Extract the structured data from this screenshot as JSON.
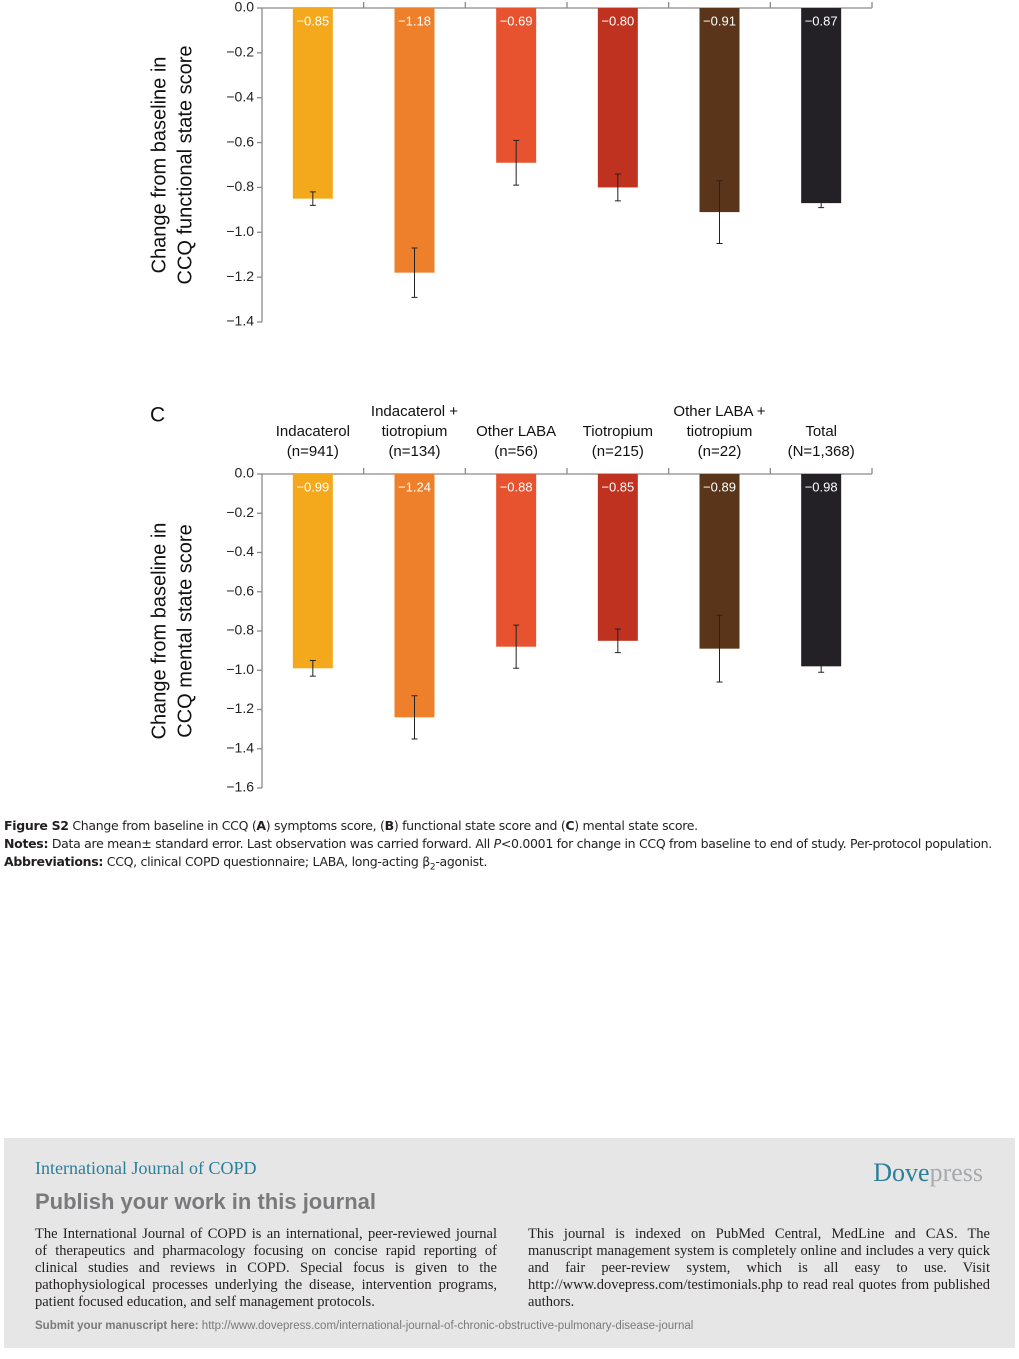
{
  "chart_data": [
    {
      "type": "bar",
      "ylabel": [
        "Change from baseline in",
        "CCQ functional state score"
      ],
      "values": [
        -0.85,
        -1.18,
        -0.69,
        -0.8,
        -0.91,
        -0.87
      ],
      "value_labels": [
        "−0.85",
        "−1.18",
        "−0.69",
        "−0.80",
        "−0.91",
        "−0.87"
      ],
      "errors": [
        0.03,
        0.11,
        0.1,
        0.06,
        0.14,
        0.02
      ],
      "colors": [
        "#f4a91d",
        "#ee802b",
        "#e7522f",
        "#bf321f",
        "#5b3519",
        "#232125"
      ],
      "ylim": [
        -1.4,
        0
      ],
      "yticks": [
        {
          "value": 0,
          "label": "0.0"
        },
        {
          "value": -0.2,
          "label": "−0.2"
        },
        {
          "value": -0.4,
          "label": "−0.4"
        },
        {
          "value": -0.6,
          "label": "−0.6"
        },
        {
          "value": -0.8,
          "label": "−0.8"
        },
        {
          "value": -1.0,
          "label": "−1.0"
        },
        {
          "value": -1.2,
          "label": "−1.2"
        },
        {
          "value": -1.4,
          "label": "−1.4"
        }
      ]
    },
    {
      "type": "bar",
      "panel": "C",
      "ylabel": [
        "Change from baseline in",
        "CCQ mental state score"
      ],
      "categories": [
        [
          "Indacaterol",
          "(n=941)"
        ],
        [
          "Indacaterol +",
          "tiotropium",
          "(n=134)"
        ],
        [
          "Other LABA",
          "(n=56)"
        ],
        [
          "Tiotropium",
          "(n=215)"
        ],
        [
          "Other LABA +",
          "tiotropium",
          "(n=22)"
        ],
        [
          "Total",
          "(N=1,368)"
        ]
      ],
      "values": [
        -0.99,
        -1.24,
        -0.88,
        -0.85,
        -0.89,
        -0.98
      ],
      "value_labels": [
        "−0.99",
        "−1.24",
        "−0.88",
        "−0.85",
        "−0.89",
        "−0.98"
      ],
      "errors": [
        0.04,
        0.11,
        0.11,
        0.06,
        0.17,
        0.03
      ],
      "colors": [
        "#f4a91d",
        "#ee802b",
        "#e7522f",
        "#bf321f",
        "#5b3519",
        "#232125"
      ],
      "ylim": [
        -1.6,
        0
      ],
      "yticks": [
        {
          "value": 0,
          "label": "0.0"
        },
        {
          "value": -0.2,
          "label": "−0.2"
        },
        {
          "value": -0.4,
          "label": "−0.4"
        },
        {
          "value": -0.6,
          "label": "−0.6"
        },
        {
          "value": -0.8,
          "label": "−0.8"
        },
        {
          "value": -1.0,
          "label": "−1.0"
        },
        {
          "value": -1.2,
          "label": "−1.2"
        },
        {
          "value": -1.4,
          "label": "−1.4"
        },
        {
          "value": -1.6,
          "label": "−1.6"
        }
      ]
    }
  ],
  "caption": {
    "label": "Figure S2",
    "parts": [
      "Change from baseline in CCQ (",
      "A",
      ") symptoms score, (",
      "B",
      ") functional state score and (",
      "C",
      ") mental state score."
    ]
  },
  "notes": {
    "label": "Notes:",
    "before": "Data are mean± standard error. Last observation was carried forward. All ",
    "italic": "P",
    "after": "<0.0001 for change in CCQ from baseline to end of study. Per-protocol population."
  },
  "abbreviations": {
    "label": "Abbreviations:",
    "text": "CCQ, clinical COPD questionnaire; LABA, long-acting β",
    "sub": "2",
    "after": "-agonist."
  },
  "footer": {
    "journal": "International Journal of COPD",
    "brand_dark": "Dove",
    "brand_light": "press",
    "heading": "Publish your work in this journal",
    "left": "The International Journal of COPD is an international, peer-reviewed journal of therapeutics and pharmacology focusing on concise rapid reporting of clinical studies and reviews in COPD. Special focus is given to the pathophysiological processes underlying the disease, intervention programs, patient focused education, and self management protocols.",
    "right": "This journal is indexed on PubMed Central, MedLine and CAS. The manuscript management system is completely online and includes a very quick and fair peer-review system, which is all easy to use. Visit http://www.dovepress.com/testimonials.php to read real quotes from published authors.",
    "submit_label": "Submit your manuscript here:",
    "submit_url": "http://www.dovepress.com/international-journal-of-chronic-obstructive-pulmonary-disease-journal"
  }
}
